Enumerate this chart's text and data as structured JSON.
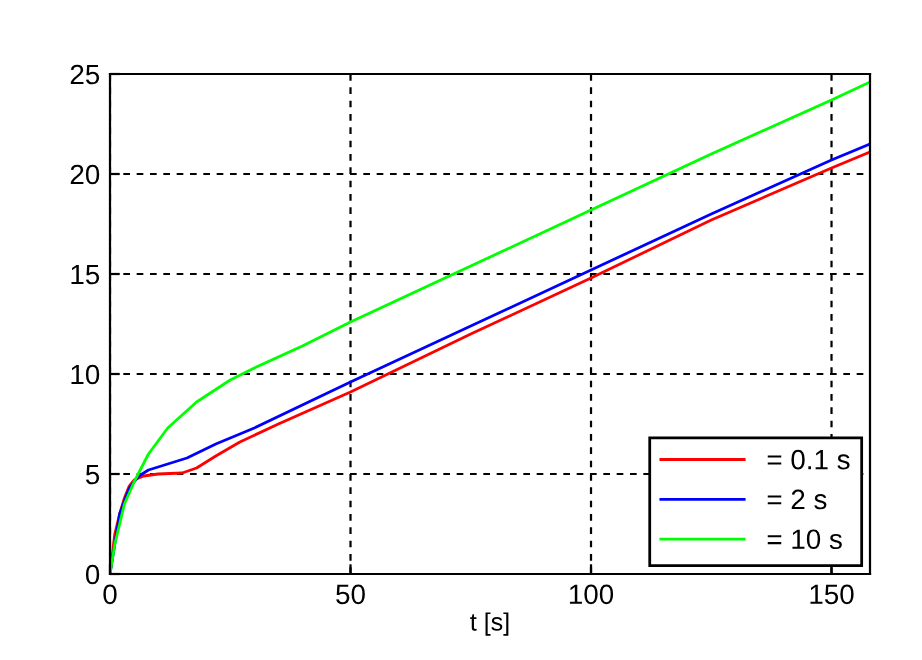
{
  "chart_data": {
    "type": "line",
    "xlabel": "t [s]",
    "xlim": [
      0,
      158
    ],
    "ylim": [
      0,
      25
    ],
    "xticks": [
      0,
      50,
      100,
      150
    ],
    "yticks": [
      0,
      5,
      10,
      15,
      20,
      25
    ],
    "grid": true,
    "legend": "bottom right",
    "line_style": "solid",
    "series": [
      {
        "name": "= 0.1 s",
        "color": "#ff0000",
        "x": [
          0,
          1,
          2,
          3,
          4,
          5,
          7,
          10,
          15,
          18,
          22,
          27,
          35,
          50,
          75,
          100,
          125,
          150,
          158
        ],
        "values": [
          0,
          2,
          3,
          3.8,
          4.4,
          4.7,
          4.9,
          5,
          5.05,
          5.3,
          5.9,
          6.6,
          7.5,
          9.1,
          12,
          14.8,
          17.7,
          20.3,
          21.1
        ]
      },
      {
        "name": "= 2 s",
        "color": "#0000ff",
        "x": [
          0,
          2,
          4,
          6,
          8,
          12,
          16,
          22,
          30,
          50,
          75,
          100,
          125,
          150,
          158
        ],
        "values": [
          0,
          3,
          4.3,
          4.9,
          5.2,
          5.5,
          5.8,
          6.5,
          7.3,
          9.6,
          12.4,
          15.2,
          18,
          20.7,
          21.5
        ]
      },
      {
        "name": "= 10 s",
        "color": "#00ff00",
        "x": [
          0,
          1,
          3,
          5,
          8,
          12,
          18,
          25,
          30,
          40,
          50,
          75,
          100,
          125,
          150,
          158
        ],
        "values": [
          0,
          1.5,
          3.5,
          4.6,
          6,
          7.3,
          8.6,
          9.7,
          10.3,
          11.4,
          12.6,
          15.4,
          18.2,
          21,
          23.7,
          24.6
        ]
      }
    ]
  }
}
